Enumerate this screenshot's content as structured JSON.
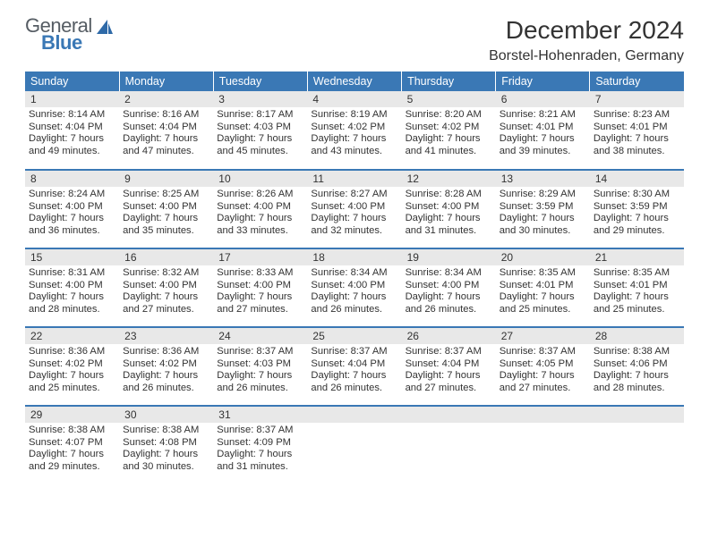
{
  "logo": {
    "text1": "General",
    "text2": "Blue",
    "sail_color": "#2f6aa8"
  },
  "title": {
    "month": "December 2024",
    "location": "Borstel-Hohenraden, Germany"
  },
  "colors": {
    "header_bg": "#3a78b5",
    "header_text": "#ffffff",
    "row_divider": "#3a78b5",
    "daynum_bg": "#e8e8e8",
    "text": "#333333",
    "background": "#ffffff"
  },
  "typography": {
    "title_fontsize": 28,
    "location_fontsize": 16,
    "header_fontsize": 12.5,
    "daynum_fontsize": 12,
    "body_fontsize": 11.2
  },
  "weekdays": [
    "Sunday",
    "Monday",
    "Tuesday",
    "Wednesday",
    "Thursday",
    "Friday",
    "Saturday"
  ],
  "days": [
    {
      "n": "1",
      "sunrise": "8:14 AM",
      "sunset": "4:04 PM",
      "day_h": "7",
      "day_m": "49"
    },
    {
      "n": "2",
      "sunrise": "8:16 AM",
      "sunset": "4:04 PM",
      "day_h": "7",
      "day_m": "47"
    },
    {
      "n": "3",
      "sunrise": "8:17 AM",
      "sunset": "4:03 PM",
      "day_h": "7",
      "day_m": "45"
    },
    {
      "n": "4",
      "sunrise": "8:19 AM",
      "sunset": "4:02 PM",
      "day_h": "7",
      "day_m": "43"
    },
    {
      "n": "5",
      "sunrise": "8:20 AM",
      "sunset": "4:02 PM",
      "day_h": "7",
      "day_m": "41"
    },
    {
      "n": "6",
      "sunrise": "8:21 AM",
      "sunset": "4:01 PM",
      "day_h": "7",
      "day_m": "39"
    },
    {
      "n": "7",
      "sunrise": "8:23 AM",
      "sunset": "4:01 PM",
      "day_h": "7",
      "day_m": "38"
    },
    {
      "n": "8",
      "sunrise": "8:24 AM",
      "sunset": "4:00 PM",
      "day_h": "7",
      "day_m": "36"
    },
    {
      "n": "9",
      "sunrise": "8:25 AM",
      "sunset": "4:00 PM",
      "day_h": "7",
      "day_m": "35"
    },
    {
      "n": "10",
      "sunrise": "8:26 AM",
      "sunset": "4:00 PM",
      "day_h": "7",
      "day_m": "33"
    },
    {
      "n": "11",
      "sunrise": "8:27 AM",
      "sunset": "4:00 PM",
      "day_h": "7",
      "day_m": "32"
    },
    {
      "n": "12",
      "sunrise": "8:28 AM",
      "sunset": "4:00 PM",
      "day_h": "7",
      "day_m": "31"
    },
    {
      "n": "13",
      "sunrise": "8:29 AM",
      "sunset": "3:59 PM",
      "day_h": "7",
      "day_m": "30"
    },
    {
      "n": "14",
      "sunrise": "8:30 AM",
      "sunset": "3:59 PM",
      "day_h": "7",
      "day_m": "29"
    },
    {
      "n": "15",
      "sunrise": "8:31 AM",
      "sunset": "4:00 PM",
      "day_h": "7",
      "day_m": "28"
    },
    {
      "n": "16",
      "sunrise": "8:32 AM",
      "sunset": "4:00 PM",
      "day_h": "7",
      "day_m": "27"
    },
    {
      "n": "17",
      "sunrise": "8:33 AM",
      "sunset": "4:00 PM",
      "day_h": "7",
      "day_m": "27"
    },
    {
      "n": "18",
      "sunrise": "8:34 AM",
      "sunset": "4:00 PM",
      "day_h": "7",
      "day_m": "26"
    },
    {
      "n": "19",
      "sunrise": "8:34 AM",
      "sunset": "4:00 PM",
      "day_h": "7",
      "day_m": "26"
    },
    {
      "n": "20",
      "sunrise": "8:35 AM",
      "sunset": "4:01 PM",
      "day_h": "7",
      "day_m": "25"
    },
    {
      "n": "21",
      "sunrise": "8:35 AM",
      "sunset": "4:01 PM",
      "day_h": "7",
      "day_m": "25"
    },
    {
      "n": "22",
      "sunrise": "8:36 AM",
      "sunset": "4:02 PM",
      "day_h": "7",
      "day_m": "25"
    },
    {
      "n": "23",
      "sunrise": "8:36 AM",
      "sunset": "4:02 PM",
      "day_h": "7",
      "day_m": "26"
    },
    {
      "n": "24",
      "sunrise": "8:37 AM",
      "sunset": "4:03 PM",
      "day_h": "7",
      "day_m": "26"
    },
    {
      "n": "25",
      "sunrise": "8:37 AM",
      "sunset": "4:04 PM",
      "day_h": "7",
      "day_m": "26"
    },
    {
      "n": "26",
      "sunrise": "8:37 AM",
      "sunset": "4:04 PM",
      "day_h": "7",
      "day_m": "27"
    },
    {
      "n": "27",
      "sunrise": "8:37 AM",
      "sunset": "4:05 PM",
      "day_h": "7",
      "day_m": "27"
    },
    {
      "n": "28",
      "sunrise": "8:38 AM",
      "sunset": "4:06 PM",
      "day_h": "7",
      "day_m": "28"
    },
    {
      "n": "29",
      "sunrise": "8:38 AM",
      "sunset": "4:07 PM",
      "day_h": "7",
      "day_m": "29"
    },
    {
      "n": "30",
      "sunrise": "8:38 AM",
      "sunset": "4:08 PM",
      "day_h": "7",
      "day_m": "30"
    },
    {
      "n": "31",
      "sunrise": "8:37 AM",
      "sunset": "4:09 PM",
      "day_h": "7",
      "day_m": "31"
    }
  ],
  "labels": {
    "sunrise": "Sunrise:",
    "sunset": "Sunset:",
    "daylight_prefix": "Daylight:",
    "hours_word": "hours",
    "and_word": "and",
    "minutes_word": "minutes."
  }
}
